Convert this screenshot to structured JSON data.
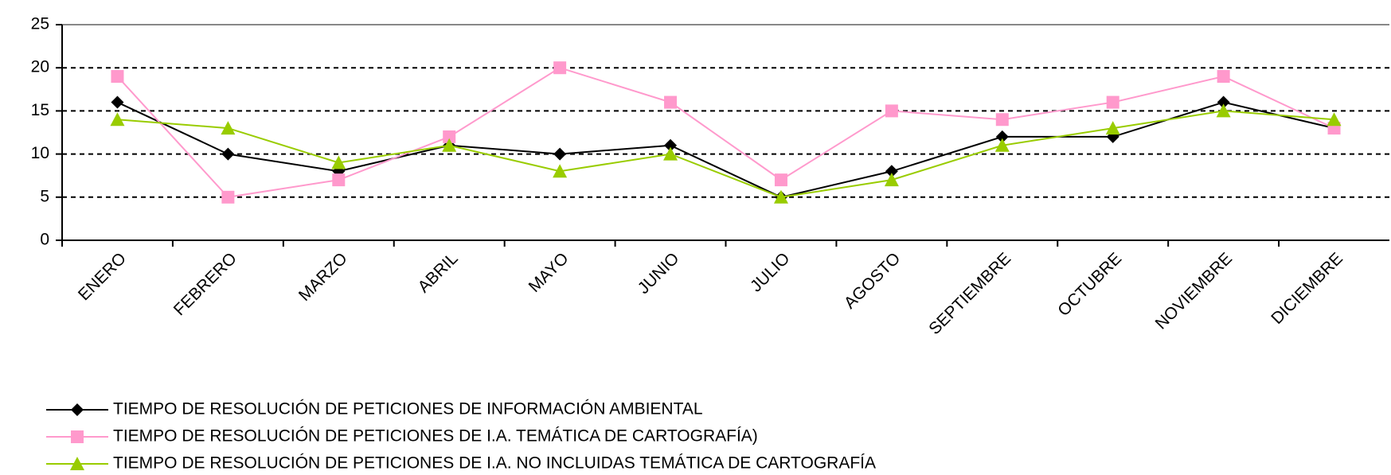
{
  "chart_data": {
    "type": "line",
    "categories": [
      "ENERO",
      "FEBRERO",
      "MARZO",
      "ABRIL",
      "MAYO",
      "JUNIO",
      "JULIO",
      "AGOSTO",
      "SEPTIEMBRE",
      "OCTUBRE",
      "NOVIEMBRE",
      "DICIEMBRE"
    ],
    "series": [
      {
        "name": "TIEMPO DE RESOLUCIÓN DE PETICIONES DE INFORMACIÓN AMBIENTAL",
        "color": "#000000",
        "marker": "diamond",
        "values": [
          16,
          10,
          8,
          11,
          10,
          11,
          5,
          8,
          12,
          12,
          16,
          13
        ]
      },
      {
        "name": "TIEMPO DE RESOLUCIÓN DE PETICIONES DE I.A. TEMÁTICA DE CARTOGRAFÍA)",
        "color": "#ff99cc",
        "marker": "square",
        "values": [
          19,
          5,
          7,
          12,
          20,
          16,
          7,
          15,
          14,
          16,
          19,
          13
        ]
      },
      {
        "name": "TIEMPO DE RESOLUCIÓN DE PETICIONES DE I.A. NO INCLUIDAS TEMÁTICA DE CARTOGRAFÍA",
        "color": "#99cc00",
        "marker": "triangle",
        "values": [
          14,
          13,
          9,
          11,
          8,
          10,
          5,
          7,
          11,
          13,
          15,
          14
        ]
      }
    ],
    "ylim": [
      0,
      25
    ],
    "yticks": [
      0,
      5,
      10,
      15,
      20,
      25
    ],
    "grid": true,
    "legend": "bottom"
  }
}
